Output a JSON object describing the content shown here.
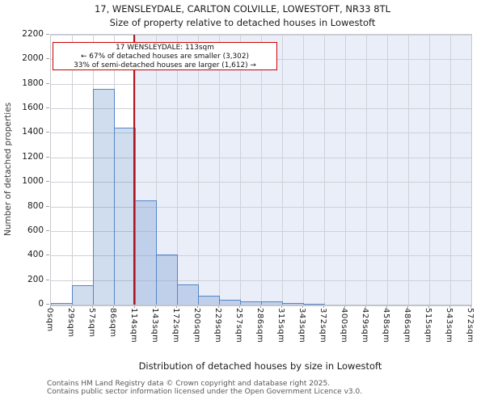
{
  "header": {
    "title": "17, WENSLEYDALE, CARLTON COLVILLE, LOWESTOFT, NR33 8TL",
    "subtitle": "Size of property relative to detached houses in Lowestoft"
  },
  "chart_data": {
    "type": "bar",
    "title": "17, WENSLEYDALE, CARLTON COLVILLE, LOWESTOFT, NR33 8TL",
    "subtitle": "Size of property relative to detached houses in Lowestoft",
    "xlabel": "Distribution of detached houses by size in Lowestoft",
    "ylabel": "Number of detached properties",
    "xlim_sqm": [
      0,
      572
    ],
    "ylim": [
      0,
      2200
    ],
    "grid": true,
    "legend": "none",
    "y_ticks": [
      0,
      200,
      400,
      600,
      800,
      1000,
      1200,
      1400,
      1600,
      1800,
      2000,
      2200
    ],
    "x_tick_labels": [
      "0sqm",
      "29sqm",
      "57sqm",
      "86sqm",
      "114sqm",
      "143sqm",
      "172sqm",
      "200sqm",
      "229sqm",
      "257sqm",
      "286sqm",
      "315sqm",
      "343sqm",
      "372sqm",
      "400sqm",
      "429sqm",
      "458sqm",
      "486sqm",
      "515sqm",
      "543sqm",
      "572sqm"
    ],
    "bin_ranges_sqm": [
      "0-29",
      "29-57",
      "57-86",
      "86-114",
      "114-143",
      "143-172",
      "172-200",
      "200-229",
      "229-257",
      "257-286",
      "286-315",
      "315-343",
      "343-372",
      "372-400",
      "400-429",
      "429-458",
      "458-486",
      "486-515",
      "515-543",
      "543-572"
    ],
    "values": [
      15,
      160,
      1760,
      1440,
      850,
      410,
      165,
      70,
      40,
      25,
      25,
      15,
      8,
      0,
      0,
      0,
      0,
      0,
      0,
      0
    ],
    "marker": {
      "label": "17 WENSLEYDALE",
      "size_sqm": 113
    },
    "shaded_region_sqm": {
      "from": 113,
      "to": 572
    }
  },
  "annotation": {
    "line1": "17 WENSLEYDALE: 113sqm",
    "line2": "← 67% of detached houses are smaller (3,302)",
    "line3": "33% of semi-detached houses are larger (1,612) →"
  },
  "footer": {
    "line1": "Contains HM Land Registry data © Crown copyright and database right 2025.",
    "line2": "Contains public sector information licensed under the Open Government Licence v3.0."
  },
  "colors": {
    "bar_fill": "rgba(86,134,199,0.28)",
    "bar_edge": "#5585c5",
    "shaded_region": "#e9eef9",
    "gridline": "#cfd1d6",
    "marker_line": "#b5121b",
    "annotation_border": "#cc0000",
    "title_text": "#1a1a1a",
    "footer_text": "#575757"
  }
}
